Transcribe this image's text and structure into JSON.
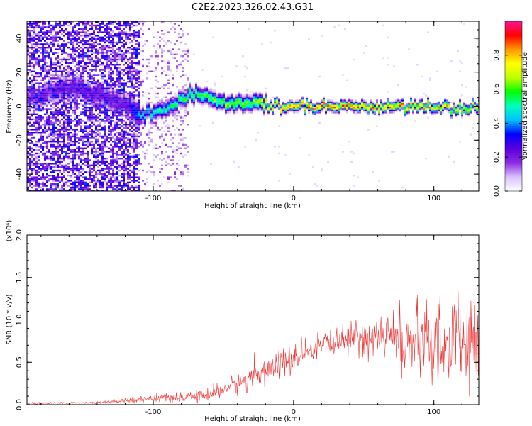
{
  "figure": {
    "title": "C2E2.2023.326.02.43.G31"
  },
  "chart_data": [
    {
      "type": "heatmap",
      "xlabel": "Height of straight line (km)",
      "ylabel": "Frequency (Hz)",
      "xlim": [
        -190,
        132
      ],
      "ylim": [
        -50,
        50
      ],
      "x_ticks": [
        -100,
        0,
        100
      ],
      "y_ticks": [
        -40,
        -20,
        0,
        20,
        40
      ],
      "grid": false,
      "colorbar": {
        "label": "Normalized spectral amplitude",
        "range": [
          0,
          1
        ],
        "ticks": [
          "0.0",
          "0.2",
          "0.4",
          "0.6",
          "0.8"
        ],
        "colors": [
          "#ffffff",
          "#d8c0ff",
          "#8a2be2",
          "#5a00e0",
          "#0000ff",
          "#00bfff",
          "#00ffbf",
          "#00ff00",
          "#bfff00",
          "#ffff00",
          "#ff9900",
          "#ff0000",
          "#ff1493"
        ]
      },
      "ridge": {
        "description_points_x": [
          -190,
          -160,
          -120,
          -110,
          -90,
          -70,
          -50,
          -30,
          -20,
          -10,
          0,
          20,
          50,
          80,
          100,
          132
        ],
        "center_frequency": [
          5,
          12,
          2,
          -5,
          0,
          8,
          2,
          3,
          2,
          0,
          0,
          0,
          0,
          0,
          0,
          0
        ],
        "peak_amplitude": [
          0.2,
          0.25,
          0.25,
          0.45,
          0.55,
          0.6,
          0.65,
          0.7,
          0.75,
          0.9,
          0.9,
          0.9,
          0.9,
          0.85,
          0.8,
          0.75
        ]
      }
    },
    {
      "type": "line",
      "xlabel": "Height of straight line (km)",
      "ylabel": "SNR (10 * v/v)",
      "y_multiplier": "(x10⁴)",
      "xlim": [
        -190,
        132
      ],
      "ylim": [
        0,
        2.0
      ],
      "x_ticks": [
        -100,
        0,
        100
      ],
      "y_ticks": [
        "0.0",
        "0.5",
        "1.0",
        "1.5",
        "2.0"
      ],
      "grid": false,
      "line_color": "#ee3333",
      "series": [
        {
          "x": [
            -190,
            -170,
            -150,
            -130,
            -110,
            -100,
            -90,
            -80,
            -70,
            -60,
            -50,
            -40,
            -30,
            -20,
            -10,
            0,
            10,
            20,
            30,
            40,
            50,
            60,
            70,
            80,
            90,
            100,
            110,
            120,
            132
          ],
          "mean": [
            0.01,
            0.02,
            0.02,
            0.03,
            0.06,
            0.08,
            0.08,
            0.07,
            0.1,
            0.12,
            0.18,
            0.25,
            0.33,
            0.4,
            0.48,
            0.53,
            0.6,
            0.68,
            0.75,
            0.78,
            0.8,
            0.8,
            0.78,
            0.75,
            0.72,
            0.7,
            0.75,
            0.72,
            0.7
          ],
          "spread": [
            0.01,
            0.01,
            0.01,
            0.02,
            0.03,
            0.04,
            0.04,
            0.04,
            0.05,
            0.07,
            0.08,
            0.1,
            0.12,
            0.13,
            0.14,
            0.15,
            0.13,
            0.13,
            0.13,
            0.14,
            0.18,
            0.22,
            0.28,
            0.32,
            0.35,
            0.38,
            0.42,
            0.45,
            0.45
          ]
        }
      ]
    }
  ]
}
